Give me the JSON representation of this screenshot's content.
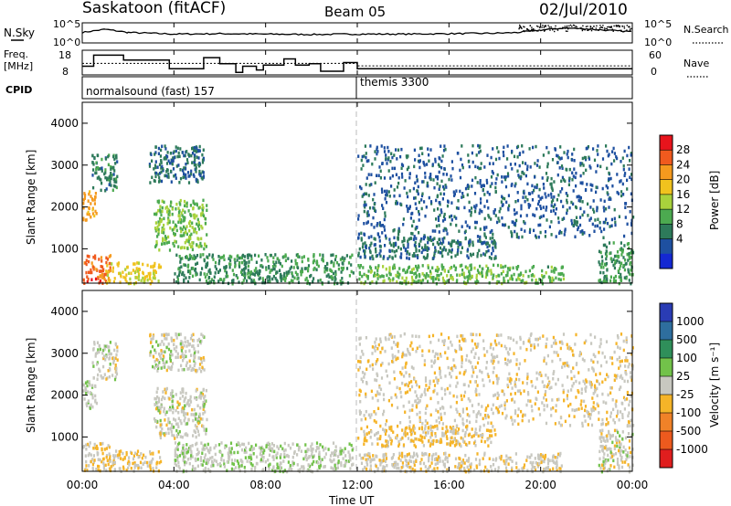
{
  "header": {
    "station": "Saskatoon (fitACF)",
    "beam": "Beam 05",
    "date": "02/Jul/2010"
  },
  "status_panels": {
    "nsky_label": "N.Sky",
    "nsearch_label": "N.Search",
    "freq_label_line1": "Freq.",
    "freq_label_line2": "[MHz]",
    "nave_label": "Nave",
    "cpid_label": "CPID",
    "noise_ticks_left": [
      "10^5",
      "10^0"
    ],
    "noise_ticks_right": [
      "10^5",
      "10^0"
    ],
    "freq_ticks": [
      "18",
      "8"
    ],
    "nave_ticks": [
      "60",
      "0"
    ],
    "cpid_segments": [
      {
        "label": "normalsound (fast) 157",
        "start_hour": 0
      },
      {
        "label": "themis 3300",
        "start_hour": 12
      }
    ]
  },
  "axes": {
    "xlabel": "Time UT",
    "x_ticks": [
      "00:00",
      "04:00",
      "08:00",
      "12:00",
      "16:00",
      "20:00",
      "00:00"
    ],
    "ylabel": "Slant Range [km]",
    "y_ticks": [
      "1000",
      "2000",
      "3000",
      "4000"
    ]
  },
  "colorbars": {
    "power": {
      "label": "Power [dB]",
      "ticks": [
        "28",
        "24",
        "20",
        "16",
        "12",
        "8",
        "4"
      ],
      "colors": [
        "#e8141c",
        "#f05a1e",
        "#f59a1e",
        "#f0c21e",
        "#a8d23c",
        "#4caa50",
        "#2d7a5a",
        "#1e50a0",
        "#1428d2"
      ]
    },
    "velocity": {
      "label": "Velocity [m s⁻¹]",
      "ticks": [
        "1000",
        "500",
        "100",
        "25",
        "-25",
        "-100",
        "-500",
        "-1000"
      ],
      "colors": [
        "#2a3cb4",
        "#2e6e9e",
        "#2f8f5a",
        "#72c24a",
        "#c8c8c0",
        "#f5b428",
        "#f08228",
        "#ec5a1e",
        "#e01e1e"
      ]
    }
  },
  "chart_data": [
    {
      "type": "line",
      "title": "N.Sky / N.Search",
      "x_units": "hour UT",
      "series": [
        {
          "name": "N.Sky",
          "x": [
            0,
            1,
            2,
            3,
            4,
            6,
            8,
            10,
            12,
            14,
            16,
            18,
            19,
            20,
            21,
            22,
            23,
            24
          ],
          "values": [
            2.6,
            3.4,
            2.6,
            2.4,
            2.2,
            2.3,
            2.2,
            2.1,
            2.2,
            2.2,
            2.3,
            2.4,
            2.6,
            3.2,
            3.7,
            3.5,
            3.1,
            2.8
          ]
        }
      ],
      "ylim": [
        0,
        5
      ],
      "yscale": "log10"
    },
    {
      "type": "line",
      "title": "Freq. / Nave",
      "x_units": "hour UT",
      "series": [
        {
          "name": "Freq.",
          "x": [
            0,
            0.5,
            1.8,
            2.2,
            3.8,
            5.3,
            6.0,
            6.7,
            7.0,
            7.6,
            7.9,
            8.8,
            9.3,
            9.9,
            10.4,
            11.4,
            12.0,
            24
          ],
          "values": [
            11.5,
            16.0,
            14.0,
            14.0,
            10.5,
            15.0,
            12.5,
            9.0,
            11.5,
            10.0,
            12.0,
            14.5,
            12.0,
            12.5,
            9.5,
            13.0,
            10.5,
            10.5
          ]
        },
        {
          "name": "Nave",
          "x": [
            0,
            12,
            12.01,
            24
          ],
          "values": [
            28,
            28,
            22,
            22
          ]
        }
      ],
      "ylim": [
        8,
        18
      ]
    },
    {
      "type": "heatmap",
      "title": "Power [dB]",
      "x_units": "hour UT",
      "y_units": "km",
      "xlim": [
        0,
        24
      ],
      "ylim": [
        180,
        4500
      ],
      "clim": [
        0,
        30
      ],
      "echo_regions": [
        {
          "t": [
            0.0,
            1.2
          ],
          "r": [
            200,
            900
          ],
          "value": 26
        },
        {
          "t": [
            0.0,
            0.6
          ],
          "r": [
            1700,
            2400
          ],
          "value": 22
        },
        {
          "t": [
            0.4,
            1.5
          ],
          "r": [
            2400,
            3300
          ],
          "value": 8
        },
        {
          "t": [
            1.0,
            3.4
          ],
          "r": [
            200,
            700
          ],
          "value": 18
        },
        {
          "t": [
            2.9,
            5.3
          ],
          "r": [
            2600,
            3500
          ],
          "value": 6
        },
        {
          "t": [
            3.1,
            5.4
          ],
          "r": [
            1000,
            2200
          ],
          "value": 13
        },
        {
          "t": [
            4.0,
            11.8
          ],
          "r": [
            200,
            900
          ],
          "value": 9
        },
        {
          "t": [
            12.0,
            18.0
          ],
          "r": [
            800,
            1300
          ],
          "value": 6
        },
        {
          "t": [
            12.0,
            21.0
          ],
          "r": [
            200,
            650
          ],
          "value": 12
        },
        {
          "t": [
            12.0,
            24.0
          ],
          "r": [
            1300,
            3500
          ],
          "value": 5
        },
        {
          "t": [
            22.5,
            24.0
          ],
          "r": [
            200,
            1200
          ],
          "value": 10
        }
      ]
    },
    {
      "type": "heatmap",
      "title": "Velocity [m s⁻¹]",
      "x_units": "hour UT",
      "y_units": "km",
      "xlim": [
        0,
        24
      ],
      "ylim": [
        180,
        4500
      ],
      "clim": [
        -1000,
        1000
      ],
      "echo_regions": [
        {
          "t": [
            0.0,
            1.2
          ],
          "r": [
            200,
            900
          ],
          "value": -150
        },
        {
          "t": [
            0.0,
            0.6
          ],
          "r": [
            1700,
            2400
          ],
          "value": 60
        },
        {
          "t": [
            0.4,
            1.5
          ],
          "r": [
            2400,
            3300
          ],
          "value": 0
        },
        {
          "t": [
            1.0,
            3.4
          ],
          "r": [
            200,
            700
          ],
          "value": -150
        },
        {
          "t": [
            2.9,
            5.3
          ],
          "r": [
            2600,
            3500
          ],
          "value": 0
        },
        {
          "t": [
            3.1,
            5.4
          ],
          "r": [
            1000,
            2200
          ],
          "value": 0
        },
        {
          "t": [
            4.0,
            11.8
          ],
          "r": [
            200,
            900
          ],
          "value": 60
        },
        {
          "t": [
            12.0,
            18.0
          ],
          "r": [
            800,
            1300
          ],
          "value": -150
        },
        {
          "t": [
            12.0,
            21.0
          ],
          "r": [
            200,
            650
          ],
          "value": -60
        },
        {
          "t": [
            12.0,
            24.0
          ],
          "r": [
            1300,
            3500
          ],
          "value": -80
        },
        {
          "t": [
            22.5,
            24.0
          ],
          "r": [
            200,
            1200
          ],
          "value": 0
        }
      ]
    }
  ]
}
